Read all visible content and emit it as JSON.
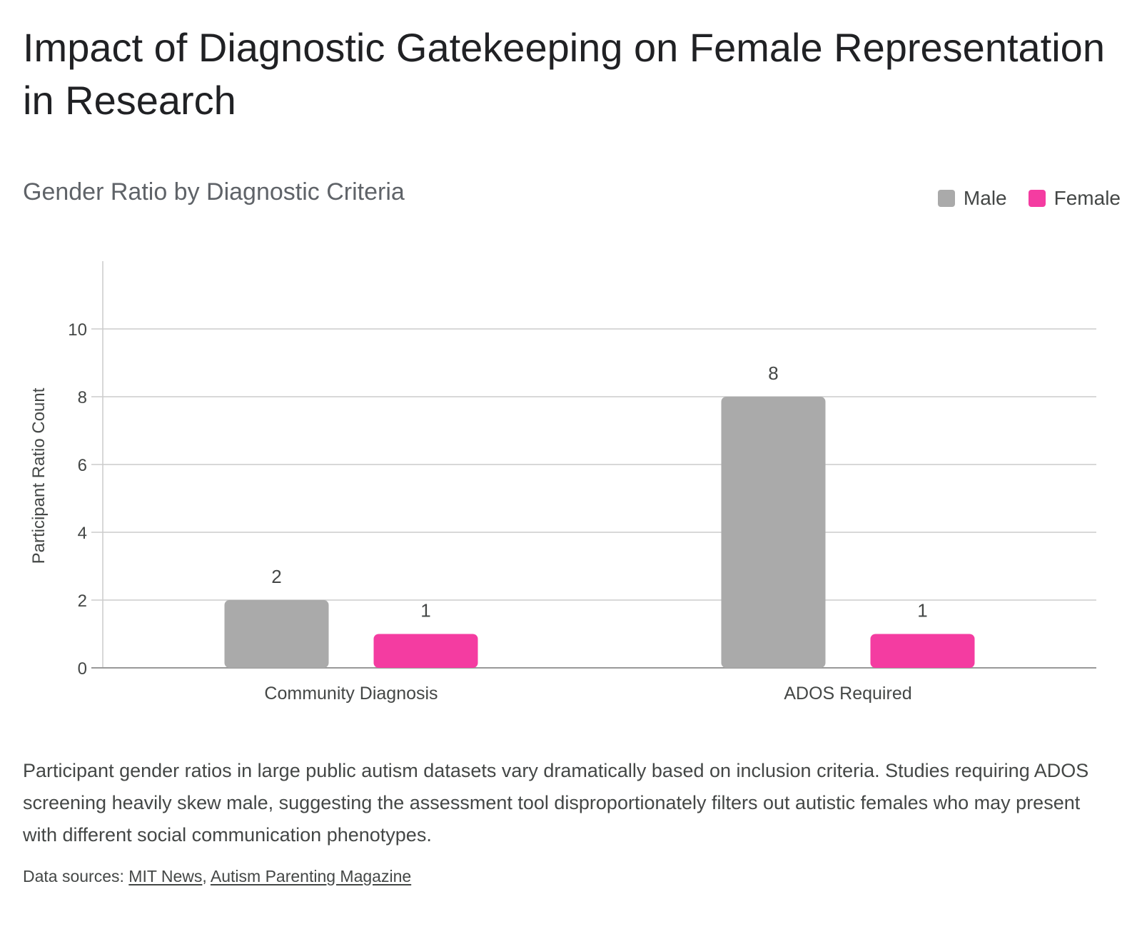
{
  "title": "Impact of Diagnostic Gatekeeping on Female Representation in Research",
  "description": "Participant gender ratios in large public autism datasets vary dramatically based on inclusion criteria. Studies requiring ADOS screening heavily skew male, suggesting the assessment tool disproportionately filters out autistic females who may present with different social communication phenotypes.",
  "sources": {
    "prefix": "Data sources: ",
    "links": [
      "MIT News",
      "Autism Parenting Magazine"
    ],
    "separator": ", "
  },
  "chart_data": {
    "type": "bar",
    "title": "Gender Ratio by Diagnostic Criteria",
    "xlabel": "",
    "ylabel": "Participant Ratio Count",
    "categories": [
      "Community Diagnosis",
      "ADOS Required"
    ],
    "series": [
      {
        "name": "Male",
        "values": [
          2,
          8
        ],
        "color": "#aaaaaa"
      },
      {
        "name": "Female",
        "values": [
          1,
          1
        ],
        "color": "#f43ca1"
      }
    ],
    "ylim": [
      0,
      12
    ],
    "yticks": [
      0,
      2,
      4,
      6,
      8,
      10
    ],
    "grid": true,
    "legend": "top-right",
    "data_labels": true
  }
}
